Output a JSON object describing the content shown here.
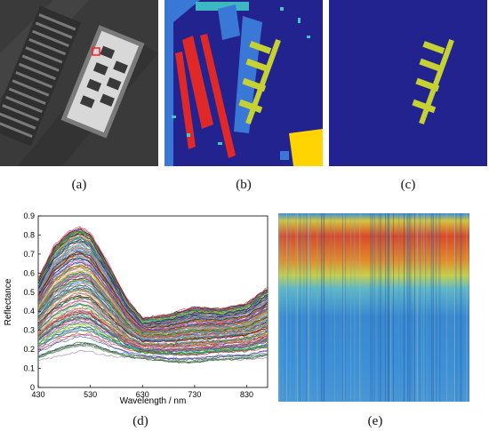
{
  "captions": {
    "a": "(a)",
    "b": "(b)",
    "c": "(c)",
    "d": "(d)",
    "e": "(e)"
  },
  "colors": {
    "map_background": "#23238f",
    "target_class": "#c5d232",
    "class_light_blue": "#3a78d8",
    "class_red": "#e02828",
    "class_yellow": "#ffd400",
    "class_cyan": "#40c8c8"
  },
  "chart_data": {
    "type": "line",
    "xlabel": "Wavelength / nm",
    "ylabel": "Reflectance",
    "xlim": [
      430,
      870
    ],
    "ylim": [
      0,
      0.9
    ],
    "x_ticks": [
      430,
      530,
      630,
      730,
      830
    ],
    "y_ticks": [
      0,
      0.1,
      0.2,
      0.3,
      0.4,
      0.5,
      0.6,
      0.7,
      0.8,
      0.9
    ],
    "grid": false,
    "series_count_approx": 200,
    "envelope": {
      "x": [
        430,
        460,
        490,
        510,
        530,
        560,
        600,
        630,
        680,
        730,
        780,
        830,
        870
      ],
      "upper": [
        0.56,
        0.73,
        0.81,
        0.83,
        0.8,
        0.66,
        0.45,
        0.35,
        0.37,
        0.41,
        0.4,
        0.43,
        0.51
      ],
      "lower": [
        0.12,
        0.14,
        0.16,
        0.17,
        0.17,
        0.15,
        0.14,
        0.14,
        0.12,
        0.11,
        0.13,
        0.13,
        0.14
      ]
    }
  },
  "x_tick_labels": [
    "430",
    "530",
    "630",
    "730",
    "830"
  ],
  "y_tick_labels": [
    "0",
    "0.1",
    "0.2",
    "0.3",
    "0.4",
    "0.5",
    "0.6",
    "0.7",
    "0.8",
    "0.9"
  ]
}
